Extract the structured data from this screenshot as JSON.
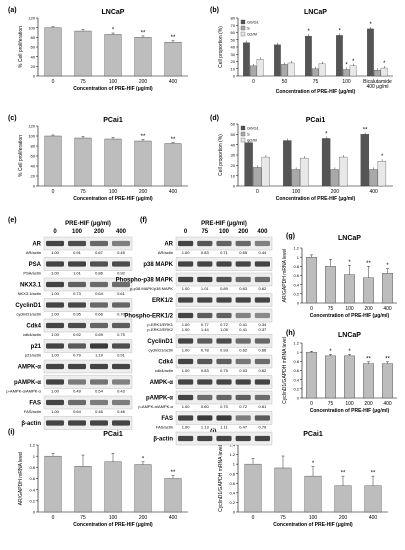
{
  "colors": {
    "gray_bar": "#bdbdbd",
    "dark": "#555555",
    "mid": "#a9a9a9",
    "light": "#e8e8e8",
    "band": "#3a3a3a",
    "blot_bg": "#eeeeee"
  },
  "chart_data": [
    {
      "id": "a",
      "panel_label": "(a)",
      "type": "bar",
      "title": "LNCaP",
      "ylabel": "% Cell proliferation",
      "xlabel": "Concentration of PRE-HIF (μg/ml)",
      "categories": [
        "0",
        "75",
        "100",
        "200",
        "400"
      ],
      "values": [
        100,
        93,
        86,
        80,
        70
      ],
      "errors": [
        2,
        3,
        3,
        3,
        3
      ],
      "ylim": [
        0,
        120
      ],
      "yticks": [
        "0",
        "20",
        "40",
        "60",
        "80",
        "100",
        "120"
      ],
      "sig": [
        "",
        "",
        "*",
        "**",
        "**"
      ],
      "grid": false
    },
    {
      "id": "b",
      "panel_label": "(b)",
      "type": "bar",
      "title": "LNCaP",
      "ylabel": "Cell proportion (%)",
      "xlabel": "Concentration of PRE-HIF (μg/ml)",
      "categories": [
        "0",
        "50",
        "75",
        "100",
        "Bicalutamide\n400 μg/ml"
      ],
      "category_lines": [
        [
          "0"
        ],
        [
          "50"
        ],
        [
          "75"
        ],
        [
          "100"
        ],
        [
          "Bicalutamide",
          "400 μg/ml"
        ]
      ],
      "series": [
        {
          "name": "G0/G1",
          "values": [
            46,
            43,
            55,
            56,
            65
          ],
          "sig": [
            "",
            "",
            "*",
            "*",
            "*"
          ]
        },
        {
          "name": "S",
          "values": [
            14,
            16,
            10,
            9,
            8
          ],
          "sig": [
            "",
            "",
            "",
            "*",
            ""
          ]
        },
        {
          "name": "G2/M",
          "values": [
            23,
            18,
            17,
            14,
            11
          ],
          "sig": [
            "",
            "",
            "",
            "*",
            "*"
          ]
        }
      ],
      "ylim": [
        0,
        80
      ],
      "yticks": [
        "0",
        "10",
        "20",
        "30",
        "40",
        "50",
        "60",
        "70",
        "80"
      ],
      "legend": "top-left"
    },
    {
      "id": "c",
      "panel_label": "(c)",
      "type": "bar",
      "title": "PCai1",
      "ylabel": "% Cell proliferation",
      "xlabel": "Concentration of PRE-HIF (μg/ml)",
      "categories": [
        "0",
        "75",
        "100",
        "200",
        "400"
      ],
      "values": [
        100,
        96,
        94,
        90,
        85
      ],
      "errors": [
        2,
        3,
        3,
        3,
        2
      ],
      "ylim": [
        0,
        120
      ],
      "yticks": [
        "0",
        "20",
        "40",
        "60",
        "80",
        "100",
        "120"
      ],
      "sig": [
        "",
        "",
        "",
        "**",
        "**"
      ]
    },
    {
      "id": "d",
      "panel_label": "(d)",
      "type": "bar",
      "title": "PCai1",
      "ylabel": "Cell proportion (%)",
      "xlabel": "Concentration of PRE-HIF (μg/ml)",
      "categories": [
        "0",
        "100",
        "200",
        "400"
      ],
      "series": [
        {
          "name": "G0/G1",
          "values": [
            42,
            44,
            46,
            50
          ],
          "sig": [
            "",
            "",
            "*",
            "**"
          ]
        },
        {
          "name": "S",
          "values": [
            18,
            16,
            16,
            16
          ],
          "sig": [
            "",
            "",
            "",
            ""
          ]
        },
        {
          "name": "G2/M",
          "values": [
            28,
            27,
            28,
            24
          ],
          "sig": [
            "",
            "",
            "",
            "*"
          ]
        }
      ],
      "ylim": [
        0,
        60
      ],
      "yticks": [
        "0",
        "10",
        "20",
        "30",
        "40",
        "50",
        "60"
      ],
      "legend": "top-left"
    },
    {
      "id": "g",
      "panel_label": "(g)",
      "type": "bar",
      "title": "LNCaP",
      "ylabel": "AR/GAPDH mRNA level",
      "xlabel": "Concentration of PRE-HIF (μg/ml)",
      "categories": [
        "0",
        "75",
        "100",
        "200",
        "400"
      ],
      "values": [
        1.0,
        0.8,
        0.62,
        0.55,
        0.65
      ],
      "errors": [
        0.05,
        0.15,
        0.2,
        0.25,
        0.1
      ],
      "ylim": [
        0,
        1.2
      ],
      "yticks": [
        "0",
        "0.2",
        "0.4",
        "0.6",
        "0.8",
        "1",
        "1.2"
      ],
      "sig": [
        "",
        "",
        "*",
        "**",
        "*"
      ]
    },
    {
      "id": "h",
      "panel_label": "(h)",
      "type": "bar",
      "title": "LNCaP",
      "ylabel": "CyclinD1/GAPDH mRNA level",
      "xlabel": "Concentration of PRE-HIF (μg/ml)",
      "categories": [
        "0",
        "75",
        "100",
        "200",
        "400"
      ],
      "values": [
        1.0,
        0.92,
        0.92,
        0.75,
        0.75
      ],
      "errors": [
        0.02,
        0.03,
        0.03,
        0.04,
        0.04
      ],
      "ylim": [
        0,
        1.2
      ],
      "yticks": [
        "0",
        "0.2",
        "0.4",
        "0.6",
        "0.8",
        "1",
        "1.2"
      ],
      "sig": [
        "",
        "*",
        "*",
        "**",
        "**"
      ]
    },
    {
      "id": "i",
      "panel_label": "(i)",
      "type": "bar",
      "title": "PCai1",
      "ylabel": "AR/GAPDH mRNA level",
      "xlabel": "Concentration of PRE-HIF (μg/ml)",
      "categories": [
        "0",
        "75",
        "100",
        "200",
        "400"
      ],
      "values": [
        1.0,
        0.82,
        0.9,
        0.85,
        0.6
      ],
      "errors": [
        0.05,
        0.2,
        0.15,
        0.05,
        0.05
      ],
      "ylim": [
        0,
        1.2
      ],
      "yticks": [
        "0",
        "0.2",
        "0.4",
        "0.6",
        "0.8",
        "1",
        "1.2"
      ],
      "sig": [
        "",
        "",
        "",
        "*",
        "**"
      ]
    },
    {
      "id": "j",
      "panel_label": "(j)",
      "type": "bar",
      "title": "PCai1",
      "ylabel": "CyclinD1/GAPDH mRNA level",
      "xlabel": "Concentration of PRE-HIF (μg/ml)",
      "categories": [
        "0",
        "75",
        "100",
        "200",
        "400"
      ],
      "values": [
        1.0,
        0.92,
        0.75,
        0.55,
        0.55
      ],
      "errors": [
        0.12,
        0.25,
        0.2,
        0.2,
        0.2
      ],
      "ylim": [
        0,
        1.4
      ],
      "yticks": [
        "0",
        "0.2",
        "0.4",
        "0.6",
        "0.8",
        "1",
        "1.2",
        "1.4"
      ],
      "sig": [
        "",
        "",
        "*",
        "**",
        "**"
      ]
    }
  ],
  "blots": {
    "e": {
      "panel_label": "(e)",
      "title": "PRE-HIF (μg/ml)",
      "lanes": [
        "0",
        "100",
        "200",
        "400"
      ],
      "rows": [
        {
          "protein": "AR",
          "ratio_label": "AR/actin",
          "values": [
            "1.00",
            "0.91",
            "0.67",
            "0.45"
          ]
        },
        {
          "protein": "PSA",
          "ratio_label": "PSA/actin",
          "values": [
            "1.00",
            "1.01",
            "0.86",
            "0.92"
          ]
        },
        {
          "protein": "NKX3.1",
          "ratio_label": "NKX3.1/actin",
          "values": [
            "1.00",
            "0.73",
            "0.64",
            "0.61"
          ]
        },
        {
          "protein": "CyclinD1",
          "ratio_label": "cyclinD1/actin",
          "values": [
            "1.00",
            "0.95",
            "0.66",
            "0.70"
          ]
        },
        {
          "protein": "Cdk4",
          "ratio_label": "cdk4/actin",
          "values": [
            "1.00",
            "0.92",
            "0.69",
            "0.75"
          ]
        },
        {
          "protein": "p21",
          "ratio_label": "p21/actin",
          "values": [
            "1.00",
            "0.79",
            "1.19",
            "0.91"
          ]
        },
        {
          "protein": "AMPK-α",
          "ratio_label": "",
          "values": []
        },
        {
          "protein": "pAMPK-α",
          "ratio_label": "p-AMPK-α/AMPK-α",
          "values": [
            "1.00",
            "0.49",
            "0.54",
            "0.43"
          ]
        },
        {
          "protein": "FAS",
          "ratio_label": "FAS/actin",
          "values": [
            "1.00",
            "0.64",
            "0.46",
            "0.46"
          ]
        },
        {
          "protein": "β-actin",
          "ratio_label": "",
          "values": []
        }
      ]
    },
    "f": {
      "panel_label": "(f)",
      "title": "PRE-HIF (μg/ml)",
      "lanes": [
        "0",
        "75",
        "100",
        "200",
        "400"
      ],
      "rows": [
        {
          "protein": "AR",
          "ratio_label": "AR/actin",
          "values": [
            "1.00",
            "0.83",
            "0.71",
            "0.65",
            "0.44"
          ]
        },
        {
          "protein": "p38 MAPK",
          "ratio_label": "",
          "values": []
        },
        {
          "protein": "Phospho-p38 MAPK",
          "ratio_label": "p-p38 MAPK/p38 MAPK",
          "values": [
            "1.00",
            "1.01",
            "0.89",
            "0.63",
            "0.62"
          ]
        },
        {
          "protein": "ERK1/2",
          "ratio_label": "",
          "values": []
        },
        {
          "protein": "Phospho-ERK1/2",
          "ratio_label": "p-ERK1/ERK1",
          "values": [
            "1.00",
            "0.77",
            "0.72",
            "0.41",
            "0.34"
          ],
          "ratio_label2": "p-ERK2/ERK2",
          "values2": [
            "1.00",
            "1.44",
            "1.05",
            "0.41",
            "0.37"
          ]
        },
        {
          "protein": "CyclinD1",
          "ratio_label": "cyclinD1/actin",
          "values": [
            "1.00",
            "0.78",
            "0.93",
            "0.62",
            "0.66"
          ]
        },
        {
          "protein": "Cdk4",
          "ratio_label": "cdk4/actin",
          "values": [
            "1.00",
            "0.83",
            "0.75",
            "0.53",
            "0.62"
          ]
        },
        {
          "protein": "AMPK-α",
          "ratio_label": "",
          "values": []
        },
        {
          "protein": "pAMPK-α",
          "ratio_label": "p-AMPK-α/AMPK-α",
          "values": [
            "1.00",
            "0.60",
            "0.70",
            "0.72",
            "0.61"
          ]
        },
        {
          "protein": "FAS",
          "ratio_label": "FAS/actin",
          "values": [
            "1.00",
            "1.13",
            "1.11",
            "0.47",
            "0.79"
          ]
        },
        {
          "protein": "β-actin",
          "ratio_label": "",
          "values": []
        }
      ]
    }
  }
}
